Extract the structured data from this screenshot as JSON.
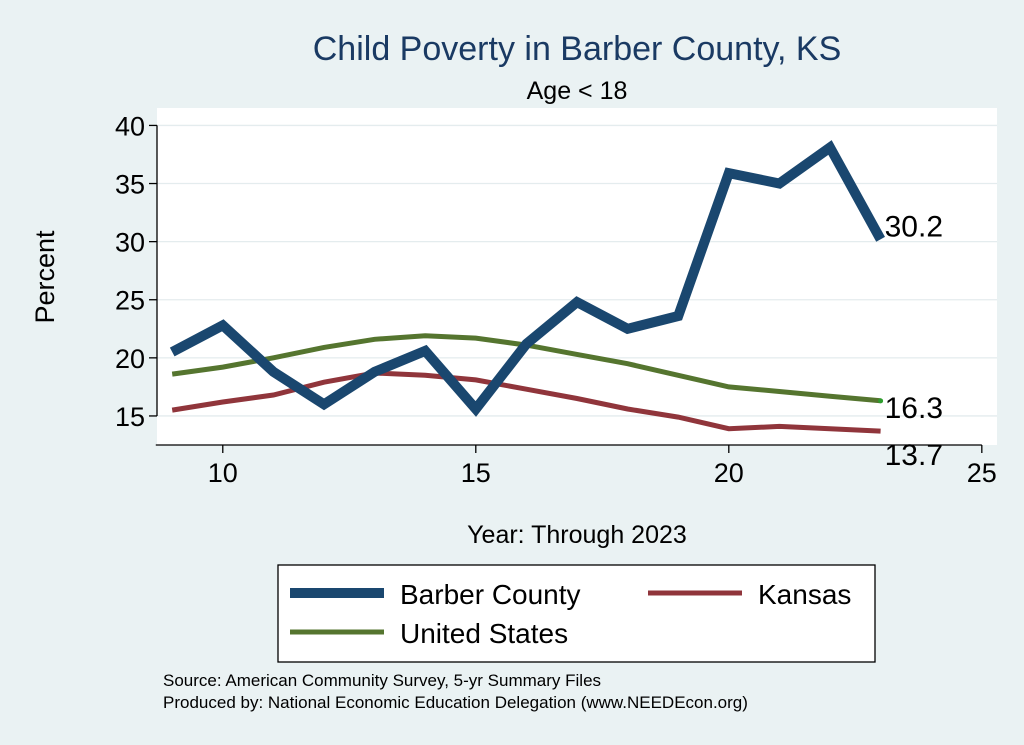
{
  "chart_data": {
    "type": "line",
    "title": "Child Poverty in Barber County, KS",
    "subtitle": "Age < 18",
    "xlabel": "Year: Through 2023",
    "ylabel": "Percent",
    "xlim": [
      8.7,
      25.3
    ],
    "ylim": [
      12.5,
      41.5
    ],
    "xticks": [
      10,
      15,
      20,
      25
    ],
    "yticks": [
      15,
      20,
      25,
      30,
      35,
      40
    ],
    "grid": true,
    "legend_position": "bottom",
    "x": [
      9,
      10,
      11,
      12,
      13,
      14,
      15,
      16,
      17,
      18,
      19,
      20,
      21,
      22,
      23
    ],
    "series": [
      {
        "name": "Barber County",
        "color": "#1a476f",
        "values": [
          20.5,
          22.8,
          18.8,
          16.0,
          18.8,
          20.6,
          15.6,
          21.2,
          24.8,
          22.5,
          23.6,
          35.9,
          35.0,
          38.1,
          30.2
        ],
        "end_label": "30.2"
      },
      {
        "name": "Kansas",
        "color": "#90353b",
        "values": [
          15.5,
          16.2,
          16.8,
          17.9,
          18.7,
          18.5,
          18.1,
          17.3,
          16.5,
          15.6,
          14.9,
          13.9,
          14.1,
          13.9,
          13.7
        ],
        "end_label": "13.7"
      },
      {
        "name": "United States",
        "color": "#55752f",
        "values": [
          18.6,
          19.2,
          20.0,
          20.9,
          21.6,
          21.9,
          21.7,
          21.1,
          20.3,
          19.5,
          18.5,
          17.5,
          17.1,
          16.7,
          16.3
        ],
        "end_label": "16.3"
      }
    ],
    "notes": [
      "Source: American Community Survey, 5-yr Summary Files",
      "Produced by: National Economic Education Delegation (www.NEEDEcon.org)"
    ]
  }
}
